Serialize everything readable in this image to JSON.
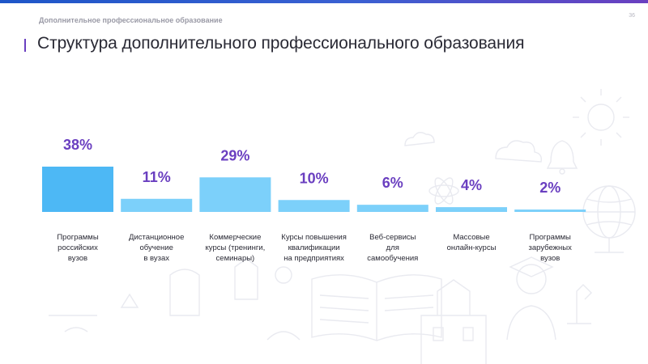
{
  "header": {
    "section_label": "Дополнительное профессиональное образование",
    "page_number": "36"
  },
  "page_title": "Структура дополнительного профессионального образования",
  "colors": {
    "accent": "#6a3fc0",
    "bar_top": "#4db8f5",
    "bar_light": "#7cd0fa",
    "top_bar_start": "#1e56c8",
    "top_bar_end": "#6a3fc0"
  },
  "chart_data": {
    "type": "bar",
    "categories": [
      [
        "Программы",
        "российских",
        "вузов"
      ],
      [
        "Дистанционное",
        "обучение",
        "в вузах"
      ],
      [
        "Коммерческие",
        "курсы (тренинги,",
        "семинары)"
      ],
      [
        "Курсы повышения",
        "квалификации",
        "на предприятиях"
      ],
      [
        "Веб-сервисы",
        "для",
        "самообучения"
      ],
      [
        "Массовые",
        "онлайн-курсы"
      ],
      [
        "Программы",
        "зарубежных",
        "вузов"
      ]
    ],
    "values": [
      38,
      11,
      29,
      10,
      6,
      4,
      2
    ],
    "data_labels": [
      "38%",
      "11%",
      "29%",
      "10%",
      "6%",
      "4%",
      "2%"
    ],
    "unit": "%",
    "grid": false,
    "legend": "none"
  }
}
